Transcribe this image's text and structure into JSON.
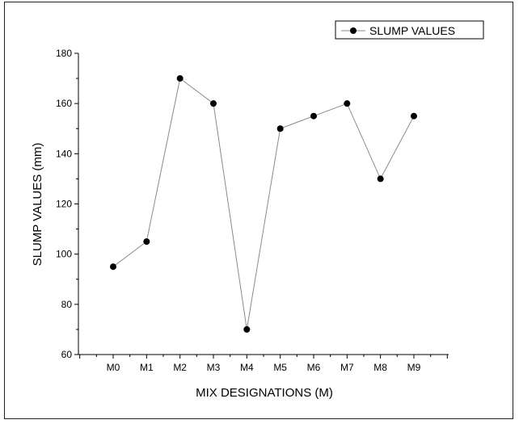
{
  "chart_data": {
    "type": "line",
    "xlabel": "MIX DESIGNATIONS (M)",
    "ylabel": "SLUMP VALUES (mm)",
    "categories": [
      "M0",
      "M1",
      "M2",
      "M3",
      "M4",
      "M5",
      "M6",
      "M7",
      "M8",
      "M9"
    ],
    "ylim": [
      60,
      180
    ],
    "yticks": [
      60,
      80,
      100,
      120,
      140,
      160,
      180
    ],
    "series": [
      {
        "name": "SLUMP VALUES",
        "values": [
          95,
          105,
          170,
          160,
          70,
          150,
          155,
          160,
          130,
          155
        ]
      }
    ],
    "grid": false,
    "legend_position": "top-right",
    "colors": {
      "line": "#8a8a8a",
      "marker": "#000000",
      "axis": "#000000"
    }
  }
}
